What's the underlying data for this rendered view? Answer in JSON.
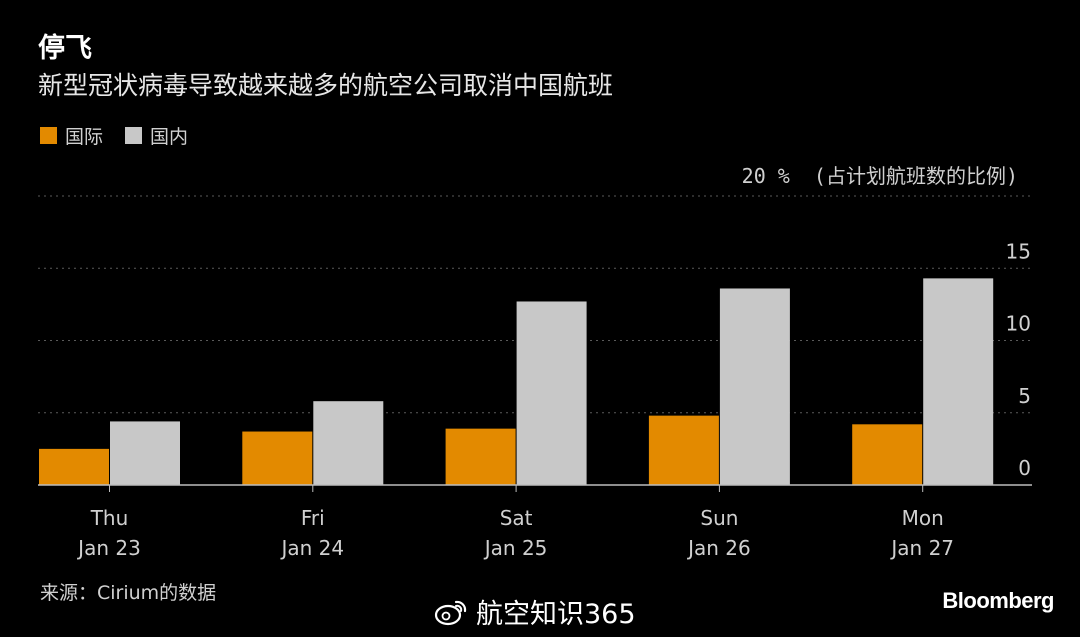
{
  "header": {
    "title": "停飞",
    "subtitle": "新型冠状病毒导致越来越多的航空公司取消中国航班"
  },
  "legend": {
    "placement": "top-left",
    "items": [
      {
        "label": "国际",
        "color": "#E38A00"
      },
      {
        "label": "国内",
        "color": "#C8C8C8"
      }
    ]
  },
  "unit_label": "20 %  (占计划航班数的比例)",
  "source": "来源：Cirium的数据",
  "watermark": "航空知识365",
  "brand": "Bloomberg",
  "chart_data": {
    "type": "bar",
    "categories": [
      {
        "day": "Thu",
        "date": "Jan 23"
      },
      {
        "day": "Fri",
        "date": "Jan 24"
      },
      {
        "day": "Sat",
        "date": "Jan 25"
      },
      {
        "day": "Sun",
        "date": "Jan 26"
      },
      {
        "day": "Mon",
        "date": "Jan 27"
      }
    ],
    "series": [
      {
        "name": "国际",
        "color": "#E38A00",
        "values": [
          2.5,
          3.7,
          3.9,
          4.8,
          4.2
        ]
      },
      {
        "name": "国内",
        "color": "#C8C8C8",
        "values": [
          4.4,
          5.8,
          12.7,
          13.6,
          14.3
        ]
      }
    ],
    "ylim": [
      0,
      20
    ],
    "yticks": [
      0,
      5,
      10,
      15
    ],
    "ytick_labels": [
      "0",
      "5",
      "10",
      "15"
    ],
    "top_tick_value": 20,
    "grid": "dotted-horizontal",
    "axis_side": "right"
  }
}
